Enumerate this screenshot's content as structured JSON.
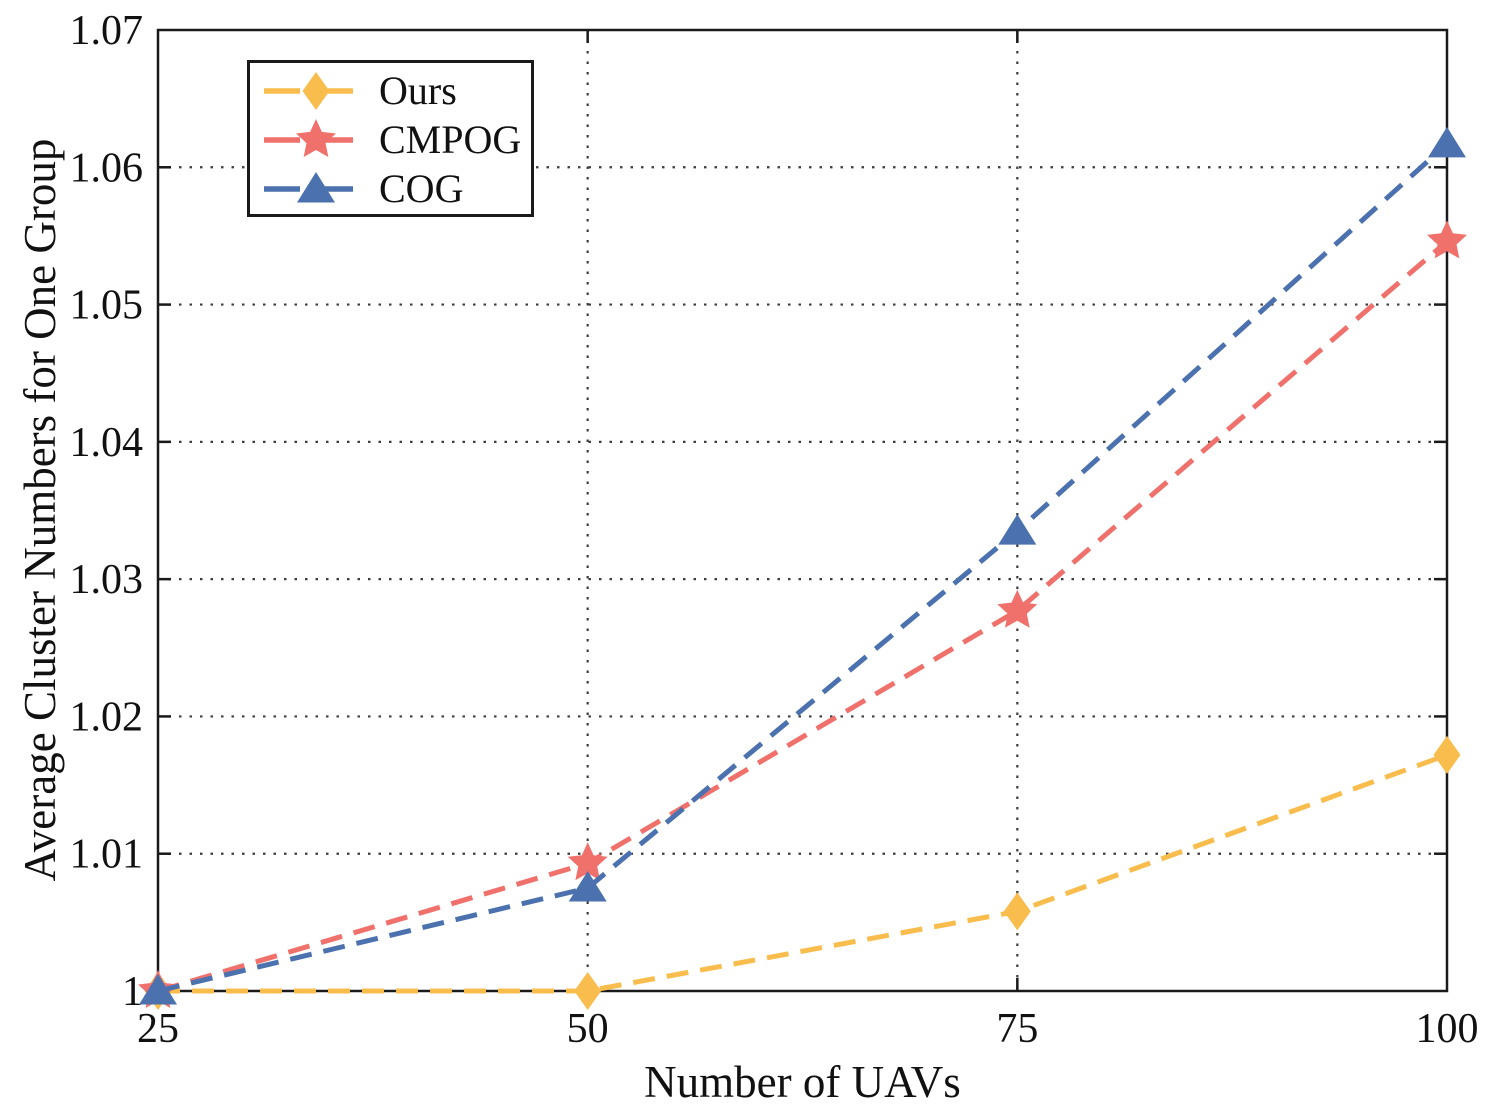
{
  "figure": {
    "background": "#ffffff",
    "text_color": "#111111",
    "axis_color": "#1a1a1a",
    "grid_color": "#3d3d3d"
  },
  "chart_data": {
    "type": "line",
    "title": "",
    "xlabel": "Number of UAVs",
    "ylabel": "Average Cluster Numbers for One Group",
    "x": [
      25,
      50,
      75,
      100
    ],
    "xlim": [
      25,
      100
    ],
    "ylim": [
      1.0,
      1.07
    ],
    "xticks": {
      "values": [
        25,
        50,
        75,
        100
      ],
      "labels": [
        "25",
        "50",
        "75",
        "100"
      ]
    },
    "yticks": {
      "values": [
        1.0,
        1.01,
        1.02,
        1.03,
        1.04,
        1.05,
        1.06,
        1.07
      ],
      "labels": [
        "1",
        "1.01",
        "1.02",
        "1.03",
        "1.04",
        "1.05",
        "1.06",
        "1.07"
      ]
    },
    "grid": "dotted",
    "legend_position": "top-left",
    "series": [
      {
        "name": "Ours",
        "color": "#F9BD4D",
        "marker": "diamond",
        "linestyle": "dashed",
        "values": [
          1.0,
          1.0,
          1.0058,
          1.0172
        ]
      },
      {
        "name": "CMPOG",
        "color": "#F0716B",
        "marker": "star",
        "linestyle": "dashed",
        "values": [
          1.0,
          1.0093,
          1.0277,
          1.0546
        ]
      },
      {
        "name": "COG",
        "color": "#4B72AE",
        "marker": "triangle",
        "linestyle": "dashed",
        "values": [
          1.0,
          1.0075,
          1.0335,
          1.0617
        ]
      }
    ]
  }
}
